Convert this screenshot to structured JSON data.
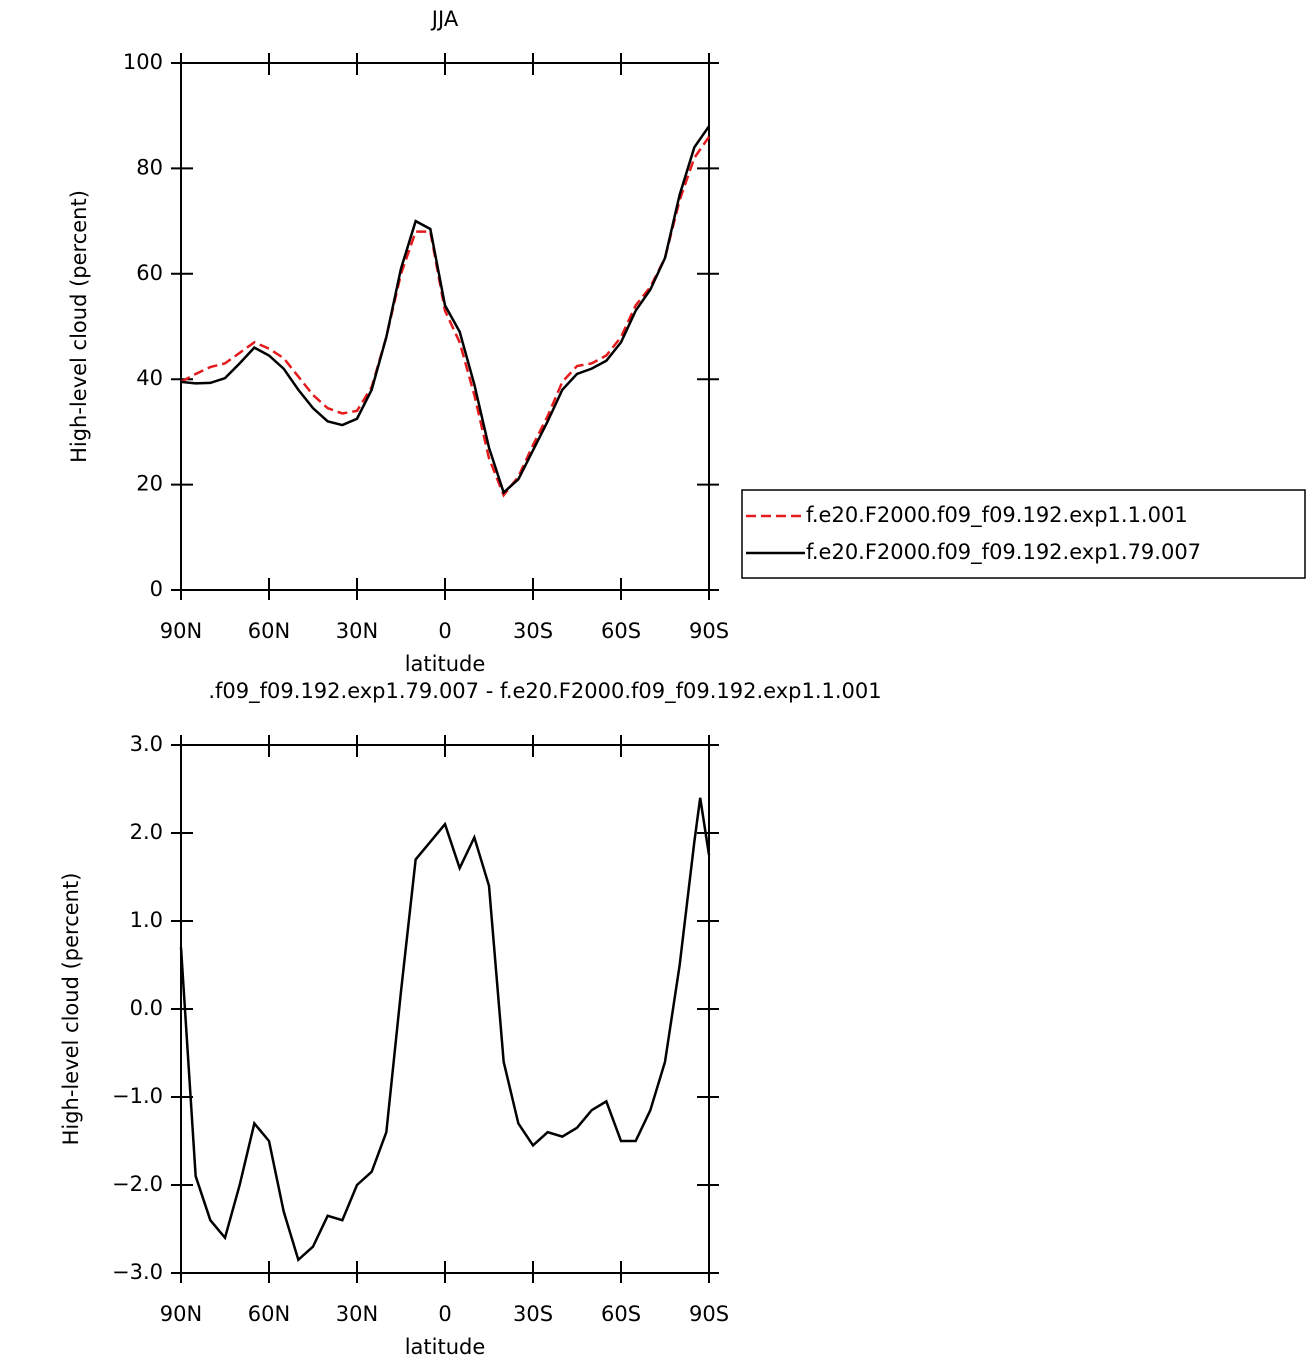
{
  "chart_data": [
    {
      "type": "line",
      "title": "JJA",
      "xlabel": "latitude",
      "ylabel": "High-level cloud (percent)",
      "x": [
        90,
        85,
        80,
        75,
        70,
        65,
        60,
        55,
        50,
        45,
        40,
        35,
        30,
        25,
        20,
        15,
        10,
        5,
        0,
        -5,
        -10,
        -15,
        -20,
        -25,
        -30,
        -35,
        -40,
        -45,
        -50,
        -55,
        -60,
        -65,
        -70,
        -75,
        -80,
        -85,
        -90
      ],
      "series": [
        {
          "name": "f.e20.F2000.f09_f09.192.exp1.1.001",
          "color": "#e41a1c",
          "linestyle": "dashed",
          "values": [
            39.5,
            41,
            42.3,
            43,
            45,
            47,
            45.8,
            44,
            40.5,
            37,
            34.5,
            33.5,
            34,
            38.5,
            48,
            60,
            68,
            68,
            53,
            47,
            37,
            25,
            18,
            21.5,
            27.5,
            33,
            39.5,
            42.5,
            43,
            44.5,
            48,
            54,
            57.5,
            63,
            74,
            82,
            86
          ]
        },
        {
          "name": "f.e20.F2000.f09_f09.192.exp1.79.007",
          "color": "#000000",
          "linestyle": "solid",
          "values": [
            39.5,
            39.2,
            39.3,
            40.2,
            43,
            46,
            44.5,
            42,
            38,
            34.5,
            32,
            31.3,
            32.5,
            38,
            48,
            61,
            70,
            68.5,
            54,
            49,
            39,
            27,
            18.5,
            21,
            26.5,
            32,
            38,
            41,
            42,
            43.5,
            47,
            53,
            57,
            63,
            75,
            84,
            88
          ]
        }
      ],
      "xlim": [
        90,
        -90
      ],
      "xticks": [
        {
          "value": 90,
          "label": "90N"
        },
        {
          "value": 60,
          "label": "60N"
        },
        {
          "value": 30,
          "label": "30N"
        },
        0,
        {
          "value": -30,
          "label": "30S"
        },
        {
          "value": -60,
          "label": "60S"
        },
        {
          "value": -90,
          "label": "90S"
        }
      ],
      "ylim": [
        0,
        100
      ],
      "yticks": [
        0,
        20,
        40,
        60,
        80,
        100
      ],
      "legend": "right"
    },
    {
      "type": "line",
      "title": ".f09_f09.192.exp1.79.007 - f.e20.F2000.f09_f09.192.exp1.1.001",
      "xlabel": "latitude",
      "ylabel": "High-level cloud (percent)",
      "x": [
        90,
        85,
        80,
        75,
        70,
        65,
        60,
        55,
        50,
        45,
        40,
        35,
        30,
        25,
        20,
        15,
        10,
        5,
        0,
        -5,
        -10,
        -15,
        -20,
        -25,
        -30,
        -35,
        -40,
        -45,
        -50,
        -55,
        -60,
        -65,
        -70,
        -75,
        -80,
        -85,
        -87,
        -90
      ],
      "series": [
        {
          "color": "#000000",
          "linestyle": "solid",
          "values": [
            0.7,
            -1.9,
            -2.4,
            -2.6,
            -2.0,
            -1.3,
            -1.5,
            -2.3,
            -2.85,
            -2.7,
            -2.35,
            -2.4,
            -2.0,
            -1.85,
            -1.4,
            0.2,
            1.7,
            1.9,
            2.1,
            1.6,
            1.95,
            1.4,
            -0.6,
            -1.3,
            -1.55,
            -1.4,
            -1.45,
            -1.35,
            -1.15,
            -1.05,
            -1.5,
            -1.5,
            -1.15,
            -0.6,
            0.5,
            1.9,
            2.4,
            1.75
          ]
        }
      ],
      "xlim": [
        90,
        -90
      ],
      "xticks": [
        {
          "value": 90,
          "label": "90N"
        },
        {
          "value": 60,
          "label": "60N"
        },
        {
          "value": 30,
          "label": "30N"
        },
        0,
        {
          "value": -30,
          "label": "30S"
        },
        {
          "value": -60,
          "label": "60S"
        },
        {
          "value": -90,
          "label": "90S"
        }
      ],
      "ylim": [
        -3,
        3
      ],
      "yticks": [
        {
          "value": -3,
          "label": "−3.0"
        },
        {
          "value": -2,
          "label": "−2.0"
        },
        {
          "value": -1,
          "label": "−1.0"
        },
        {
          "value": 0,
          "label": "0.0"
        },
        {
          "value": 1,
          "label": "1.0"
        },
        {
          "value": 2,
          "label": "2.0"
        },
        {
          "value": 3,
          "label": "3.0"
        }
      ]
    }
  ]
}
